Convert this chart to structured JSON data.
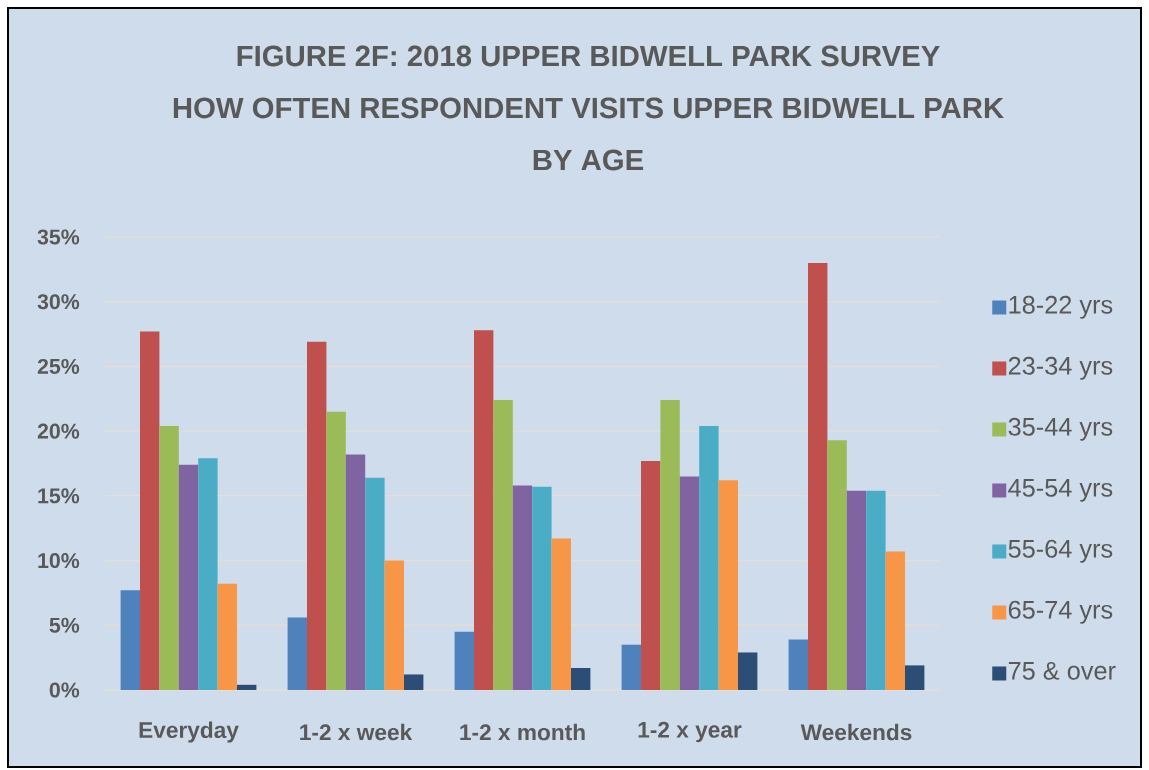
{
  "chart_data": {
    "type": "bar",
    "title": "FIGURE 2F: 2018 UPPER BIDWELL PARK SURVEY",
    "subtitle": "HOW OFTEN RESPONDENT VISITS UPPER BIDWELL PARK BY AGE",
    "categories": [
      "Everyday",
      "1-2 x week",
      "1-2 x month",
      "1-2 x year",
      "Weekends"
    ],
    "series": [
      {
        "name": "18-22 yrs",
        "color": "#4f81bd",
        "values": [
          7.7,
          5.6,
          4.5,
          3.5,
          3.9
        ]
      },
      {
        "name": "23-34 yrs",
        "color": "#c0504d",
        "values": [
          27.7,
          26.9,
          27.8,
          17.7,
          33.0
        ]
      },
      {
        "name": "35-44 yrs",
        "color": "#9bbb59",
        "values": [
          20.4,
          21.5,
          22.4,
          22.4,
          19.3
        ]
      },
      {
        "name": "45-54 yrs",
        "color": "#8064a2",
        "values": [
          17.4,
          18.2,
          15.8,
          16.5,
          15.4
        ]
      },
      {
        "name": "55-64 yrs",
        "color": "#4bacc6",
        "values": [
          17.9,
          16.4,
          15.7,
          20.4,
          15.4
        ]
      },
      {
        "name": "65-74 yrs",
        "color": "#f79646",
        "values": [
          8.2,
          10.0,
          11.7,
          16.2,
          10.7
        ]
      },
      {
        "name": "75 & over",
        "color": "#2c4d75",
        "values": [
          0.4,
          1.2,
          1.7,
          2.9,
          1.9
        ]
      }
    ],
    "ylim": [
      0,
      35
    ],
    "yticks": [
      {
        "value": 0,
        "label": "0%"
      },
      {
        "value": 5,
        "label": "5%"
      },
      {
        "value": 10,
        "label": "10%"
      },
      {
        "value": 15,
        "label": "15%"
      },
      {
        "value": 20,
        "label": "20%"
      },
      {
        "value": 25,
        "label": "25%"
      },
      {
        "value": 30,
        "label": "30%"
      },
      {
        "value": 35,
        "label": "35%"
      }
    ],
    "grid": "y",
    "legend": "right"
  }
}
